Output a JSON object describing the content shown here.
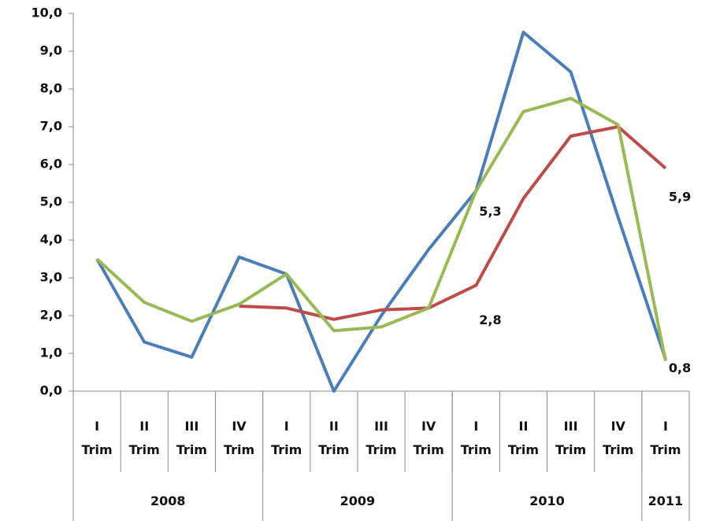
{
  "chart_data": {
    "type": "line",
    "categories": [
      "I\nTrim",
      "II\nTrim",
      "III\nTrim",
      "IV\nTrim",
      "I\nTrim",
      "II\nTrim",
      "III\nTrim",
      "IV\nTrim",
      "I\nTrim",
      "II\nTrim",
      "III\nTrim",
      "IV\nTrim",
      "I\nTrim"
    ],
    "year_groups": [
      {
        "label": "2008",
        "count": 4
      },
      {
        "label": "2009",
        "count": 4
      },
      {
        "label": "2010",
        "count": 4
      },
      {
        "label": "2011",
        "count": 1
      }
    ],
    "ylim": [
      0,
      10
    ],
    "yticks": [
      {
        "value": 0,
        "label": "0,0"
      },
      {
        "value": 1,
        "label": "1,0"
      },
      {
        "value": 2,
        "label": "2,0"
      },
      {
        "value": 3,
        "label": "3,0"
      },
      {
        "value": 4,
        "label": "4,0"
      },
      {
        "value": 5,
        "label": "5,0"
      },
      {
        "value": 6,
        "label": "6,0"
      },
      {
        "value": 7,
        "label": "7,0"
      },
      {
        "value": 8,
        "label": "8,0"
      },
      {
        "value": 9,
        "label": "9,0"
      },
      {
        "value": 10,
        "label": "10,0"
      }
    ],
    "series": [
      {
        "color": "#4a7ebb",
        "values": [
          3.5,
          1.3,
          0.9,
          3.55,
          3.1,
          0.0,
          2.0,
          3.75,
          5.3,
          9.5,
          8.45,
          4.6,
          0.85
        ]
      },
      {
        "color": "#be4b48",
        "values": [
          null,
          null,
          null,
          2.25,
          2.2,
          1.9,
          2.15,
          2.2,
          2.8,
          5.1,
          6.75,
          7.0,
          5.9
        ],
        "value_labels": [
          null,
          null,
          null,
          null,
          null,
          null,
          null,
          null,
          "2,8",
          null,
          null,
          null,
          "5,9"
        ]
      },
      {
        "color": "#98b954",
        "values": [
          3.5,
          2.35,
          1.85,
          2.3,
          3.1,
          1.6,
          1.7,
          2.2,
          5.3,
          7.4,
          7.75,
          7.05,
          0.8
        ],
        "value_labels": [
          null,
          null,
          null,
          null,
          null,
          null,
          null,
          null,
          "5,3",
          null,
          null,
          null,
          "0,8"
        ]
      }
    ]
  }
}
